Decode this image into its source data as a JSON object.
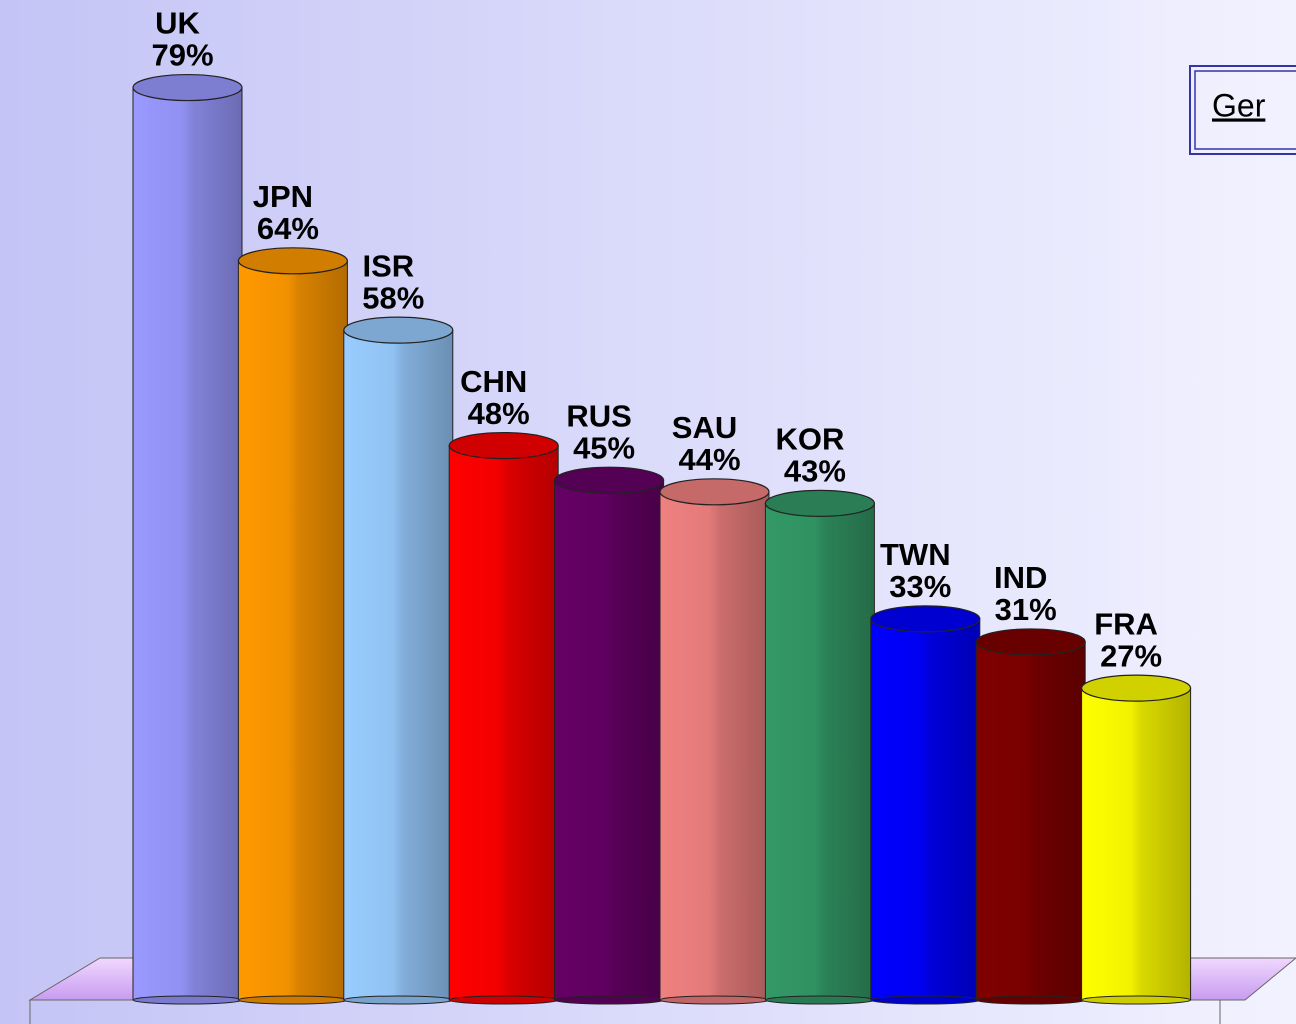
{
  "chart_data": {
    "type": "bar",
    "annotation": "Ger",
    "categories": [
      "UK",
      "JPN",
      "ISR",
      "CHN",
      "RUS",
      "SAU",
      "KOR",
      "TWN",
      "IND",
      "FRA"
    ],
    "values": [
      79,
      64,
      58,
      48,
      45,
      44,
      43,
      33,
      31,
      27
    ],
    "value_labels": [
      "79%",
      "64%",
      "58%",
      "48%",
      "45%",
      "44%",
      "43%",
      "33%",
      "31%",
      "27%"
    ],
    "colors": [
      "#9999ff",
      "#ff9900",
      "#99ccff",
      "#ff0000",
      "#660066",
      "#f08080",
      "#339966",
      "#0000ff",
      "#800000",
      "#ffff00"
    ]
  }
}
